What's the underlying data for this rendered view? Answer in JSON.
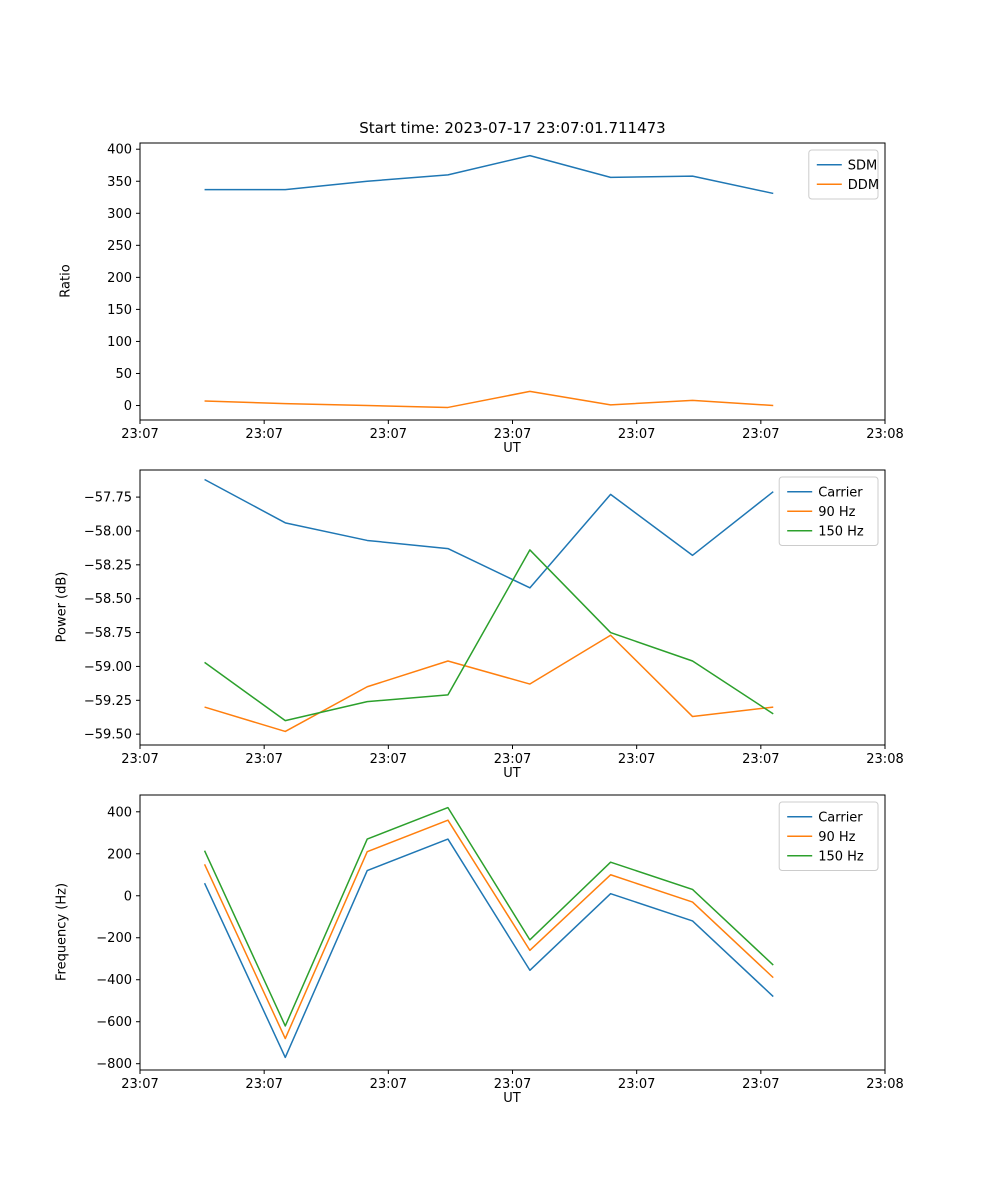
{
  "figure": {
    "title": "Start time: 2023-07-17 23:07:01.711473",
    "background": "#ffffff"
  },
  "chart_data": [
    {
      "type": "line",
      "name": "ratio",
      "title": "Start time: 2023-07-17 23:07:01.711473",
      "xlabel": "UT",
      "ylabel": "Ratio",
      "x_units": "seconds past 23:07:00 UT (estimated from axis position)",
      "x": [
        5.2,
        11.7,
        18.3,
        24.8,
        31.4,
        37.9,
        44.5,
        51.0
      ],
      "xlim": [
        0,
        60
      ],
      "xticks": {
        "positions": [
          0,
          10,
          20,
          30,
          40,
          50,
          60
        ],
        "labels": [
          "23:07",
          "23:07",
          "23:07",
          "23:07",
          "23:07",
          "23:07",
          "23:08"
        ]
      },
      "ylim": [
        -22.6,
        409.7
      ],
      "yticks": {
        "positions": [
          0,
          50,
          100,
          150,
          200,
          250,
          300,
          350,
          400
        ],
        "labels": [
          "0",
          "50",
          "100",
          "150",
          "200",
          "250",
          "300",
          "350",
          "400"
        ]
      },
      "legend_position": "upper right",
      "series": [
        {
          "name": "SDM",
          "color": "#1f77b4",
          "values": [
            337,
            337,
            350,
            360,
            390,
            356,
            358,
            331
          ]
        },
        {
          "name": "DDM",
          "color": "#ff7f0e",
          "values": [
            7,
            3,
            0,
            -3,
            22,
            1,
            8,
            0
          ]
        }
      ]
    },
    {
      "type": "line",
      "name": "power",
      "title": "",
      "xlabel": "UT",
      "ylabel": "Power (dB)",
      "x_units": "seconds past 23:07:00 UT (estimated from axis position)",
      "x": [
        5.2,
        11.7,
        18.3,
        24.8,
        31.4,
        37.9,
        44.5,
        51.0
      ],
      "xlim": [
        0,
        60
      ],
      "xticks": {
        "positions": [
          0,
          10,
          20,
          30,
          40,
          50,
          60
        ],
        "labels": [
          "23:07",
          "23:07",
          "23:07",
          "23:07",
          "23:07",
          "23:07",
          "23:08"
        ]
      },
      "ylim": [
        -59.58,
        -57.55
      ],
      "yticks": {
        "positions": [
          -59.5,
          -59.25,
          -59.0,
          -58.75,
          -58.5,
          -58.25,
          -58.0,
          -57.75
        ],
        "labels": [
          "−59.50",
          "−59.25",
          "−59.00",
          "−58.75",
          "−58.50",
          "−58.25",
          "−58.00",
          "−57.75"
        ]
      },
      "legend_position": "upper right",
      "series": [
        {
          "name": "Carrier",
          "color": "#1f77b4",
          "values": [
            -57.62,
            -57.94,
            -58.07,
            -58.13,
            -58.42,
            -57.73,
            -58.18,
            -57.71
          ]
        },
        {
          "name": "90 Hz",
          "color": "#ff7f0e",
          "values": [
            -59.3,
            -59.48,
            -59.15,
            -58.96,
            -59.13,
            -58.77,
            -59.37,
            -59.3
          ]
        },
        {
          "name": "150 Hz",
          "color": "#2ca02c",
          "values": [
            -58.97,
            -59.4,
            -59.26,
            -59.21,
            -58.14,
            -58.75,
            -58.96,
            -59.35
          ]
        }
      ]
    },
    {
      "type": "line",
      "name": "frequency",
      "title": "",
      "xlabel": "UT",
      "ylabel": "Frequency (Hz)",
      "x_units": "seconds past 23:07:00 UT (estimated from axis position)",
      "x": [
        5.2,
        11.7,
        18.3,
        24.8,
        31.4,
        37.9,
        44.5,
        51.0
      ],
      "xlim": [
        0,
        60
      ],
      "xticks": {
        "positions": [
          0,
          10,
          20,
          30,
          40,
          50,
          60
        ],
        "labels": [
          "23:07",
          "23:07",
          "23:07",
          "23:07",
          "23:07",
          "23:07",
          "23:08"
        ]
      },
      "ylim": [
        -830,
        480
      ],
      "yticks": {
        "positions": [
          -800,
          -600,
          -400,
          -200,
          0,
          200,
          400
        ],
        "labels": [
          "−800",
          "−600",
          "−400",
          "−200",
          "0",
          "200",
          "400"
        ]
      },
      "legend_position": "upper right",
      "series": [
        {
          "name": "Carrier",
          "color": "#1f77b4",
          "values": [
            60,
            -770,
            120,
            270,
            -355,
            10,
            -120,
            -480
          ]
        },
        {
          "name": "90 Hz",
          "color": "#ff7f0e",
          "values": [
            150,
            -680,
            210,
            360,
            -260,
            100,
            -30,
            -390
          ]
        },
        {
          "name": "150 Hz",
          "color": "#2ca02c",
          "values": [
            215,
            -620,
            270,
            420,
            -210,
            160,
            30,
            -330
          ]
        }
      ]
    }
  ]
}
